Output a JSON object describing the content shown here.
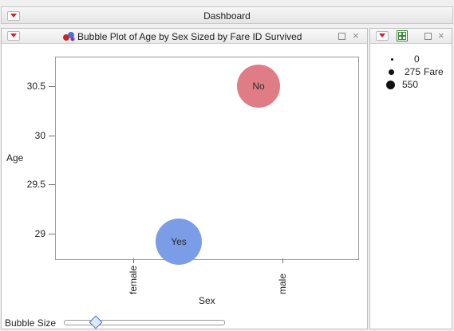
{
  "window": {
    "title": "Dashboard"
  },
  "plot_panel": {
    "title": "Bubble Plot of Age by Sex Sized by Fare ID Survived",
    "bubble_size_label": "Bubble Size",
    "bubble_size_level": 0.2
  },
  "chart_data": {
    "type": "scatter",
    "title": "Bubble Plot of Age by Sex Sized by Fare ID Survived",
    "xlabel": "Sex",
    "ylabel": "Age",
    "categories": [
      "female",
      "male"
    ],
    "ylim": [
      28.75,
      30.8
    ],
    "yticks": [
      29,
      29.5,
      30,
      30.5
    ],
    "yticklabels": [
      "29",
      "29.5",
      "30",
      "30.5"
    ],
    "points": [
      {
        "id": "Yes",
        "x": "female",
        "y": 28.92,
        "fare": 550,
        "color": "#7b9ce6"
      },
      {
        "id": "No",
        "x": "male",
        "y": 30.5,
        "fare": 480,
        "color": "#e07c86"
      }
    ]
  },
  "legend": {
    "title": "Fare",
    "items": [
      {
        "label": "0",
        "value": 0
      },
      {
        "label": "275",
        "value": 275
      },
      {
        "label": "550",
        "value": 550
      }
    ]
  }
}
